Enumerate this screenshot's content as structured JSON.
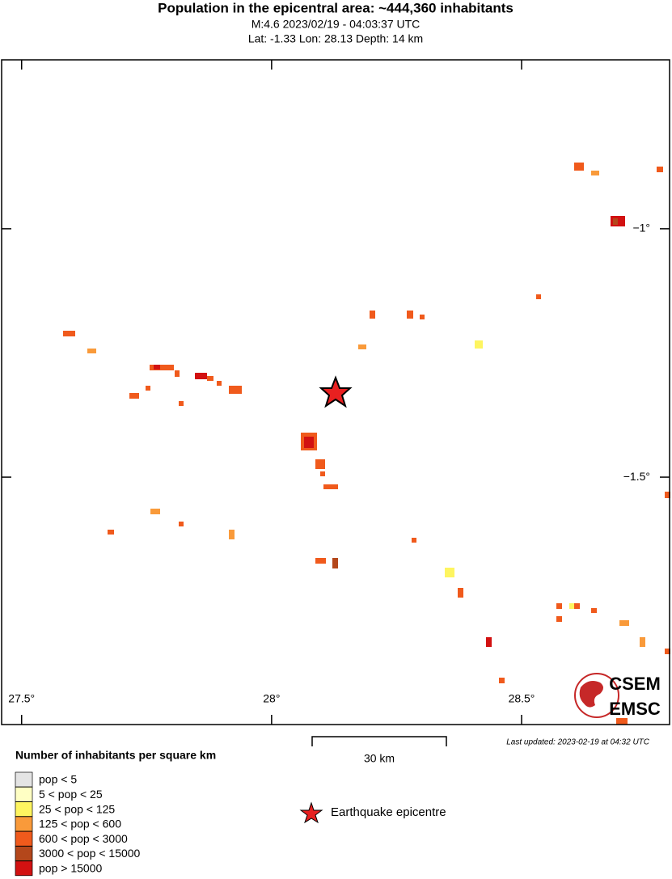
{
  "header": {
    "title": "Population in the epicentral area: ~444,360 inhabitants",
    "subtitle": "M:4.6 2023/02/19 - 04:03:37 UTC",
    "location": "Lat: -1.33 Lon: 28.13 Depth: 14 km"
  },
  "map": {
    "xlim": [
      27.46,
      28.796
    ],
    "ylim": [
      -1.998,
      -0.66
    ],
    "xticks": [
      {
        "value": 27.5,
        "label": "27.5°"
      },
      {
        "value": 28,
        "label": "28°"
      },
      {
        "value": 28.5,
        "label": "28.5°"
      }
    ],
    "yticks": [
      {
        "value": -1,
        "label": "−1°"
      },
      {
        "value": -1.5,
        "label": "−1.5°"
      }
    ],
    "scale_label": "30 km",
    "updated": "Last updated: 2023-02-19 at 04:32 UTC",
    "logo": [
      "CSEM",
      "EMSC"
    ]
  },
  "legend": {
    "title": "Number of inhabitants per square km",
    "items": [
      {
        "label": "pop < 5",
        "color": "#e4e4e4"
      },
      {
        "label": "5 < pop < 25",
        "color": "#ffffc4"
      },
      {
        "label": "25 < pop < 125",
        "color": "#fef560"
      },
      {
        "label": "125 < pop < 600",
        "color": "#f99a3a"
      },
      {
        "label": "600 < pop < 3000",
        "color": "#f05a1c"
      },
      {
        "label": "3000 < pop < 15000",
        "color": "#b4471b"
      },
      {
        "label": "pop > 15000",
        "color": "#d21111"
      }
    ],
    "epicentre": "Earthquake epicentre"
  }
}
